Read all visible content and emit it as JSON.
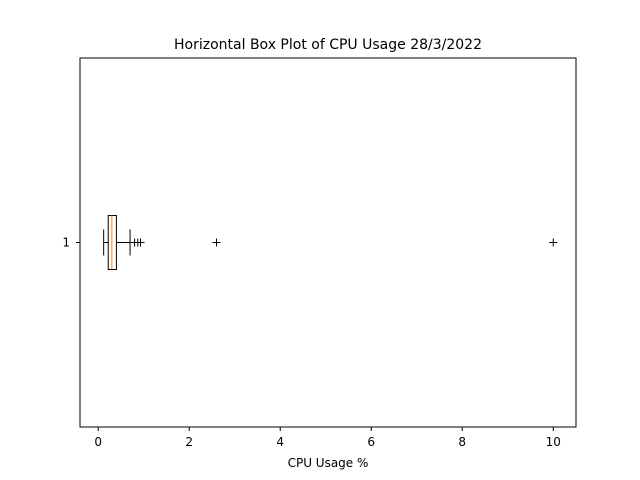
{
  "chart_data": {
    "type": "boxplot",
    "orientation": "horizontal",
    "title": "Horizontal Box Plot of CPU Usage 28/3/2022",
    "xlabel": "CPU Usage %",
    "ylabel": "",
    "xlim": [
      -0.4,
      10.5
    ],
    "xticks": [
      0,
      2,
      4,
      6,
      8,
      10
    ],
    "yticks": [
      "1"
    ],
    "grid": false,
    "boxes": [
      {
        "label": "1",
        "whisker_low": 0.12,
        "q1": 0.22,
        "median": 0.3,
        "q3": 0.4,
        "whisker_high": 0.7,
        "outliers": [
          0.8,
          0.87,
          0.93,
          2.6,
          10.0
        ]
      }
    ],
    "colors": {
      "box": "#000000",
      "median": "#ff7f0e",
      "flier": "#000000"
    }
  }
}
